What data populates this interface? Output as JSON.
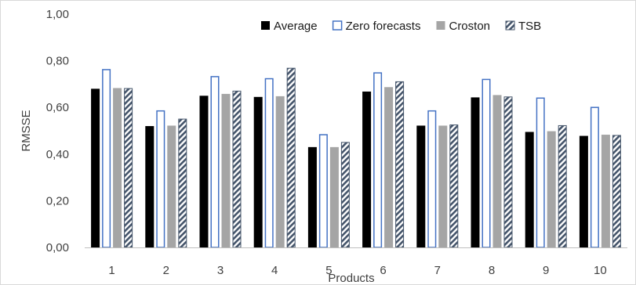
{
  "chart_data": {
    "type": "bar",
    "title": "",
    "xlabel": "Products",
    "ylabel": "RMSSE",
    "ylim": [
      0,
      1
    ],
    "yticks": [
      "0,00",
      "0,20",
      "0,40",
      "0,60",
      "0,80",
      "1,00"
    ],
    "grid": false,
    "legend_position": "top-right",
    "categories": [
      "1",
      "2",
      "3",
      "4",
      "5",
      "6",
      "7",
      "8",
      "9",
      "10"
    ],
    "series": [
      {
        "name": "Average",
        "style": "solid",
        "color": "#000000",
        "values": [
          0.68,
          0.52,
          0.65,
          0.645,
          0.43,
          0.668,
          0.522,
          0.643,
          0.495,
          0.478
        ]
      },
      {
        "name": "Zero forecasts",
        "style": "outline",
        "color": "#4472c4",
        "values": [
          0.762,
          0.585,
          0.732,
          0.723,
          0.483,
          0.748,
          0.585,
          0.72,
          0.64,
          0.6
        ]
      },
      {
        "name": "Croston",
        "style": "solid",
        "color": "#a5a5a5",
        "values": [
          0.683,
          0.522,
          0.658,
          0.648,
          0.43,
          0.687,
          0.522,
          0.653,
          0.498,
          0.483
        ]
      },
      {
        "name": "TSB",
        "style": "hatched",
        "color": "#44546a",
        "values": [
          0.681,
          0.55,
          0.67,
          0.768,
          0.45,
          0.71,
          0.525,
          0.645,
          0.522,
          0.48
        ]
      }
    ]
  }
}
